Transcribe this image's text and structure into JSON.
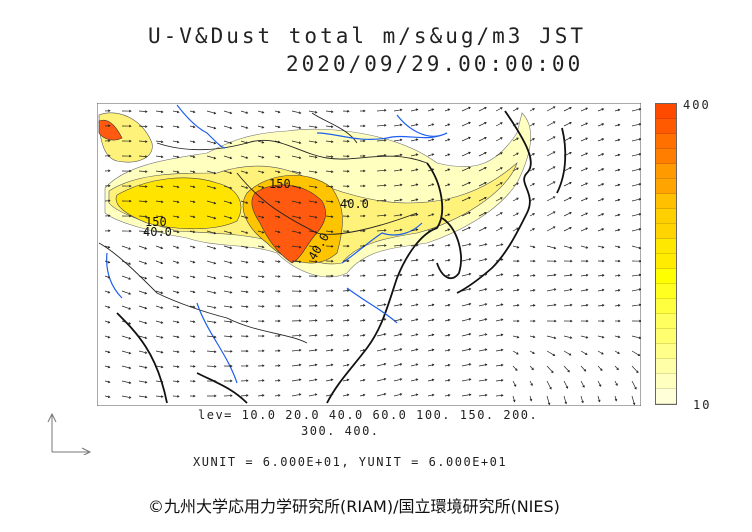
{
  "title": {
    "line1": "U-V&Dust total m/s&ug/m3 JST",
    "line2": "2020/09/29.00:00:00"
  },
  "colorbar": {
    "max_label": "400",
    "min_label": "10",
    "colors": [
      "#ff4a00",
      "#ff5a00",
      "#ff7000",
      "#ff7e00",
      "#ff9a00",
      "#ffa400",
      "#ffc000",
      "#ffd000",
      "#ffd400",
      "#ffe800",
      "#ffec00",
      "#ffff00",
      "#ffff20",
      "#ffff40",
      "#ffff60",
      "#ffff70",
      "#ffff8a",
      "#ffffa8",
      "#ffffc0",
      "#ffffd8"
    ]
  },
  "map": {
    "contour_labels": [
      "150",
      "40.0",
      "150",
      "40.0",
      "40.0"
    ]
  },
  "legend": {
    "levels_line1": "lev= 10.0 20.0 40.0 60.0 100. 150. 200.",
    "levels_line2": "300. 400.",
    "units": "XUNIT = 6.000E+01, YUNIT = 6.000E+01"
  },
  "copyright": "©九州大学応用力学研究所(RIAM)/国立環境研究所(NIES)"
}
